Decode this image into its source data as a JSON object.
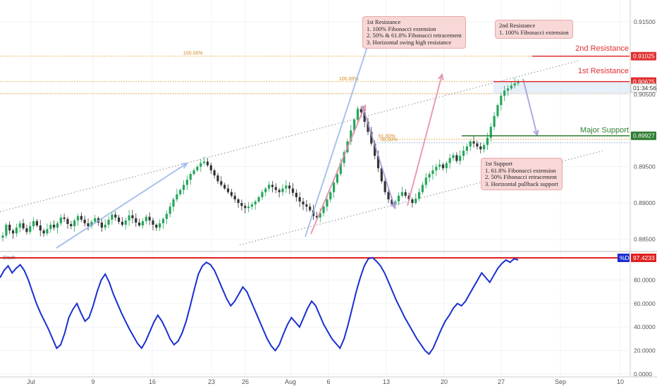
{
  "chart_data": {
    "type": "candlestick",
    "instrument_note": "price chart with Fibonacci / support-resistance annotations",
    "x_ticks": [
      "Jul",
      "9",
      "16",
      "23",
      "26",
      "Aug",
      "6",
      "13",
      "20",
      "27",
      "Sep",
      "10"
    ],
    "price_axis": {
      "ticks": [
        "0.91500",
        "0.90500",
        "0.89500",
        "0.89000",
        "0.88500"
      ],
      "ylim": [
        0.8835,
        0.918
      ]
    },
    "levels": [
      {
        "name": "2nd Resistance",
        "value": "0.91025",
        "color": "#e03030"
      },
      {
        "name": "1st Resistance",
        "value": "0.90675",
        "color": "#e03030"
      },
      {
        "name": "Major Support",
        "value": "0.89927",
        "color": "#2e7d32"
      }
    ],
    "countdown_label": "01:34:56",
    "fib_labels": [
      "100.00%",
      "100.00%",
      "61.80%",
      "50.00%"
    ],
    "annotations": [
      {
        "title": "1st Resistance",
        "lines": [
          "1. 100% Fibonacci extension",
          "2. 50% & 61.8% Fibonacci retracement",
          "3. Horizontal swing high resistance"
        ]
      },
      {
        "title": "2nd Resistance",
        "lines": [
          "1. 100% Fibonacci extension"
        ]
      },
      {
        "title": "1st Support",
        "lines": [
          "1. 61.8% Fibonacci extension",
          "2. 50% Fibonacci retracement",
          "3. Horizontal pullback support"
        ]
      }
    ],
    "price_series": [
      0.8855,
      0.887,
      0.8862,
      0.8858,
      0.8866,
      0.8872,
      0.8865,
      0.886,
      0.8868,
      0.8875,
      0.8869,
      0.8862,
      0.8858,
      0.8864,
      0.887,
      0.8866,
      0.8872,
      0.888,
      0.8878,
      0.8871,
      0.8868,
      0.8876,
      0.8882,
      0.8877,
      0.8872,
      0.8868,
      0.8874,
      0.8879,
      0.8873,
      0.8866,
      0.887,
      0.8877,
      0.8884,
      0.888,
      0.8874,
      0.887,
      0.8876,
      0.8883,
      0.8879,
      0.8873,
      0.8869,
      0.8875,
      0.8881,
      0.8876,
      0.887,
      0.8866,
      0.8872,
      0.8878,
      0.8885,
      0.8895,
      0.8905,
      0.8912,
      0.8918,
      0.8925,
      0.8932,
      0.894,
      0.8945,
      0.895,
      0.8955,
      0.8957,
      0.8952,
      0.8945,
      0.8938,
      0.893,
      0.8925,
      0.892,
      0.8915,
      0.891,
      0.8905,
      0.89,
      0.8896,
      0.8893,
      0.8895,
      0.8898,
      0.8902,
      0.8908,
      0.8915,
      0.892,
      0.8925,
      0.8922,
      0.8918,
      0.8915,
      0.892,
      0.8924,
      0.892,
      0.8914,
      0.8908,
      0.8902,
      0.8898,
      0.8895,
      0.889,
      0.8882,
      0.888,
      0.8886,
      0.8895,
      0.8905,
      0.8915,
      0.8928,
      0.894,
      0.8955,
      0.897,
      0.8985,
      0.9,
      0.9015,
      0.903,
      0.9025,
      0.9012,
      0.8998,
      0.8982,
      0.8965,
      0.8948,
      0.893,
      0.8915,
      0.8905,
      0.8898,
      0.8902,
      0.891,
      0.8915,
      0.891,
      0.8905,
      0.89,
      0.8906,
      0.8915,
      0.8925,
      0.8935,
      0.894,
      0.8945,
      0.895,
      0.8953,
      0.8948,
      0.8955,
      0.8962,
      0.8966,
      0.8958,
      0.8965,
      0.8972,
      0.8978,
      0.8985,
      0.8982,
      0.8978,
      0.8974,
      0.898,
      0.899,
      0.9005,
      0.902,
      0.9035,
      0.9048,
      0.9055,
      0.9058,
      0.9062,
      0.9065,
      0.9067
    ],
    "oscillator": {
      "name": "Stoch",
      "series_label": "%D",
      "current_value": "97.4233",
      "ticks": [
        "80.0000",
        "60.0000",
        "40.0000",
        "20.0000",
        "0.0000"
      ],
      "ylim": [
        0,
        100
      ],
      "values": [
        82,
        88,
        92,
        86,
        90,
        93,
        88,
        80,
        70,
        60,
        52,
        45,
        38,
        30,
        22,
        25,
        35,
        48,
        55,
        60,
        52,
        45,
        48,
        58,
        70,
        80,
        85,
        78,
        68,
        60,
        52,
        45,
        38,
        32,
        26,
        22,
        28,
        36,
        44,
        50,
        45,
        38,
        30,
        25,
        28,
        35,
        45,
        58,
        72,
        85,
        92,
        95,
        93,
        88,
        80,
        72,
        64,
        58,
        62,
        68,
        74,
        70,
        62,
        54,
        46,
        38,
        30,
        24,
        20,
        25,
        34,
        42,
        48,
        44,
        40,
        48,
        56,
        62,
        58,
        50,
        42,
        36,
        30,
        26,
        22,
        30,
        42,
        56,
        70,
        82,
        92,
        98,
        99,
        96,
        92,
        86,
        78,
        70,
        62,
        55,
        48,
        42,
        36,
        30,
        25,
        20,
        17,
        22,
        30,
        38,
        45,
        50,
        56,
        60,
        58,
        62,
        68,
        74,
        80,
        86,
        82,
        78,
        84,
        90,
        94,
        97,
        95,
        98,
        97
      ]
    }
  }
}
